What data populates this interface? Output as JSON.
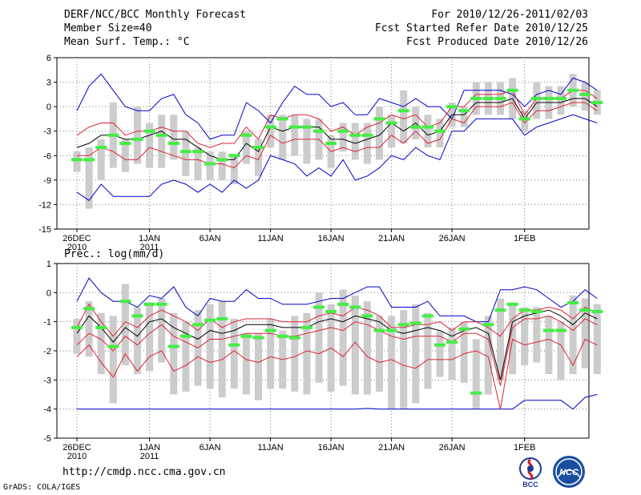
{
  "header": {
    "left": [
      "DERF/NCC/BCC Monthly Forecast",
      "Member Size=40",
      "Mean Surf. Temp.: °C"
    ],
    "right": [
      "For 2010/12/26-2011/02/03",
      "Fcst Started Refer Date 2010/12/25",
      "Fcst Produced Date 2010/12/26"
    ]
  },
  "footer": {
    "url": "http://cmdp.ncc.cma.gov.cn",
    "credit": "GrADS: COLA/IGES",
    "logo_bcc": "BCC",
    "logo_ncc": "NCC"
  },
  "colors": {
    "envelope": "#0000cc",
    "spread": "#dd2233",
    "mean": "#000000",
    "median": "#44ee44",
    "bar": "#cccccc"
  },
  "chart_data": [
    {
      "type": "box-plume",
      "title": "Mean Surf. Temp.: °C",
      "ylim": [
        -15,
        6
      ],
      "yticks": [
        6,
        3,
        0,
        -3,
        -6,
        -9,
        -12,
        -15
      ],
      "xticks": [
        {
          "day": 0,
          "label": "26DEC",
          "label2": "2010"
        },
        {
          "day": 6,
          "label": "1JAN",
          "label2": "2011"
        },
        {
          "day": 11,
          "label": "6JAN"
        },
        {
          "day": 16,
          "label": "11JAN"
        },
        {
          "day": 21,
          "label": "16JAN"
        },
        {
          "day": 26,
          "label": "21JAN"
        },
        {
          "day": 31,
          "label": "26JAN"
        },
        {
          "day": 37,
          "label": "1FEB"
        }
      ],
      "series": [
        {
          "name": "max",
          "values": [
            -0.5,
            2.5,
            4.0,
            2.0,
            0.0,
            -0.5,
            -0.5,
            1.0,
            1.5,
            -1.0,
            -2.0,
            -4.0,
            -3.5,
            -3.5,
            0.5,
            -0.5,
            -2.0,
            0.5,
            2.5,
            1.5,
            1.5,
            0.0,
            0.5,
            -1.0,
            -1.0,
            1.0,
            0.5,
            0.0,
            1.0,
            0.0,
            0.0,
            -1.5,
            2.0,
            2.0,
            2.0,
            2.0,
            1.5,
            0.0,
            1.5,
            2.0,
            1.5,
            3.5,
            3.0,
            2.0
          ]
        },
        {
          "name": "upper",
          "values": [
            -3.5,
            -2.5,
            -2.0,
            -2.0,
            -3.5,
            -3.0,
            -3.0,
            -2.5,
            -3.0,
            -3.0,
            -4.5,
            -5.0,
            -4.5,
            -4.5,
            -2.5,
            -4.0,
            -1.0,
            -1.5,
            -1.0,
            -1.0,
            -1.5,
            -3.0,
            -2.5,
            -3.5,
            -2.5,
            -2.0,
            -1.0,
            -1.5,
            -1.0,
            -2.5,
            -2.0,
            0.0,
            0.0,
            1.5,
            1.5,
            1.5,
            2.0,
            -1.0,
            1.0,
            1.0,
            1.0,
            2.0,
            2.0,
            1.0
          ]
        },
        {
          "name": "mean",
          "values": [
            -5.0,
            -4.5,
            -3.5,
            -3.5,
            -4.0,
            -4.0,
            -3.5,
            -3.0,
            -4.0,
            -4.0,
            -5.0,
            -6.0,
            -6.5,
            -6.5,
            -4.5,
            -5.5,
            -2.5,
            -3.0,
            -2.5,
            -2.5,
            -2.5,
            -4.0,
            -4.0,
            -4.5,
            -4.0,
            -3.5,
            -2.0,
            -3.0,
            -2.0,
            -3.5,
            -3.0,
            -1.0,
            -1.0,
            0.5,
            0.5,
            0.5,
            1.0,
            -1.5,
            0.5,
            0.5,
            0.5,
            1.0,
            1.0,
            0.0
          ]
        },
        {
          "name": "lower",
          "values": [
            -6.0,
            -6.0,
            -5.0,
            -5.5,
            -6.5,
            -6.5,
            -5.0,
            -5.5,
            -6.0,
            -6.5,
            -6.5,
            -7.0,
            -7.0,
            -7.5,
            -6.0,
            -6.5,
            -3.5,
            -4.5,
            -4.0,
            -4.0,
            -4.0,
            -5.5,
            -5.0,
            -5.5,
            -5.0,
            -5.0,
            -3.5,
            -4.5,
            -3.0,
            -4.5,
            -4.0,
            -1.5,
            -2.0,
            0.0,
            0.0,
            0.0,
            0.5,
            -2.0,
            -0.5,
            -0.5,
            0.0,
            0.5,
            0.5,
            -0.5
          ]
        },
        {
          "name": "min",
          "values": [
            -10.5,
            -11.5,
            -9.5,
            -11.0,
            -11.0,
            -11.0,
            -11.0,
            -9.5,
            -9.0,
            -9.5,
            -10.5,
            -9.5,
            -10.5,
            -9.0,
            -10.0,
            -9.0,
            -6.0,
            -6.5,
            -7.0,
            -8.5,
            -7.5,
            -8.5,
            -6.5,
            -9.0,
            -8.5,
            -7.5,
            -6.0,
            -6.5,
            -5.0,
            -6.0,
            -6.5,
            -3.0,
            -3.0,
            -1.5,
            -1.5,
            -1.5,
            -1.5,
            -3.5,
            -2.5,
            -2.0,
            -1.5,
            -1.0,
            -1.5,
            -2.0
          ]
        },
        {
          "name": "median",
          "values": [
            -6.5,
            -6.5,
            -5.0,
            -3.5,
            -4.5,
            -4.0,
            -3.0,
            -3.5,
            -4.5,
            -5.5,
            -5.5,
            -7.0,
            -6.5,
            -6.0,
            -3.5,
            -5.0,
            -2.5,
            -1.5,
            -2.5,
            -2.5,
            -3.0,
            -4.5,
            -3.0,
            -3.5,
            -3.5,
            -1.5,
            -2.0,
            -0.5,
            -2.5,
            -2.5,
            -3.0,
            0.0,
            -0.5,
            1.0,
            1.0,
            1.0,
            2.0,
            -1.5,
            1.0,
            1.0,
            1.0,
            2.0,
            1.5,
            0.5
          ]
        },
        {
          "name": "box_top",
          "values": [
            -5.5,
            -5.0,
            -4.0,
            0.5,
            -4.0,
            0.0,
            -2.0,
            -1.0,
            -1.0,
            -3.0,
            -5.0,
            -5.5,
            -5.5,
            -6.0,
            -3.0,
            -4.0,
            -1.0,
            -1.0,
            -1.0,
            -1.5,
            -1.5,
            -3.5,
            -2.0,
            -2.0,
            -2.0,
            0.0,
            -1.0,
            2.0,
            0.0,
            -1.0,
            -1.5,
            0.5,
            0.0,
            3.0,
            3.0,
            3.0,
            3.5,
            -0.5,
            3.0,
            2.5,
            2.5,
            4.0,
            3.0,
            2.0
          ]
        },
        {
          "name": "box_bottom",
          "values": [
            -8.0,
            -12.5,
            -9.0,
            -7.5,
            -8.0,
            -7.0,
            -7.5,
            -7.5,
            -6.5,
            -8.5,
            -9.0,
            -9.0,
            -9.0,
            -9.5,
            -7.0,
            -8.5,
            -5.0,
            -6.5,
            -6.0,
            -7.0,
            -6.5,
            -7.5,
            -5.5,
            -6.5,
            -7.0,
            -6.5,
            -5.0,
            -4.5,
            -4.0,
            -5.0,
            -5.0,
            -2.5,
            -2.5,
            -1.0,
            -1.0,
            -1.0,
            -1.5,
            -3.0,
            -1.5,
            -1.5,
            -1.0,
            0.0,
            -0.5,
            -1.0
          ]
        }
      ]
    },
    {
      "type": "box-plume",
      "title": "Prec.: log(mm/d)",
      "ylim": [
        -5,
        1
      ],
      "yticks": [
        1,
        0,
        -1,
        -2,
        -3,
        -4,
        -5
      ],
      "xticks": [
        {
          "day": 0,
          "label": "26DEC",
          "label2": "2010"
        },
        {
          "day": 6,
          "label": "1JAN",
          "label2": "2011"
        },
        {
          "day": 11,
          "label": "6JAN"
        },
        {
          "day": 16,
          "label": "11JAN"
        },
        {
          "day": 21,
          "label": "16JAN"
        },
        {
          "day": 26,
          "label": "21JAN"
        },
        {
          "day": 31,
          "label": "26JAN"
        },
        {
          "day": 37,
          "label": "1FEB"
        }
      ],
      "series": [
        {
          "name": "max",
          "values": [
            -0.3,
            0.5,
            0.0,
            -0.3,
            -0.3,
            -0.5,
            -0.1,
            -0.2,
            0.2,
            -0.5,
            -0.8,
            -0.2,
            -0.3,
            -0.3,
            0.1,
            -0.2,
            -0.2,
            -0.4,
            -0.4,
            -0.4,
            -0.3,
            -0.2,
            -0.2,
            0.0,
            0.2,
            0.2,
            -0.5,
            -0.5,
            -0.5,
            -0.3,
            -0.8,
            -0.8,
            -0.8,
            -1.0,
            -1.0,
            0.1,
            0.1,
            0.2,
            0.1,
            -0.2,
            -0.5,
            -0.3,
            0.1,
            -0.2
          ]
        },
        {
          "name": "upper",
          "values": [
            -1.2,
            -0.4,
            -1.0,
            -1.5,
            -1.0,
            -1.2,
            -0.8,
            -0.6,
            -0.8,
            -1.0,
            -1.3,
            -0.9,
            -1.2,
            -1.0,
            -0.9,
            -0.9,
            -0.9,
            -1.0,
            -1.0,
            -1.0,
            -0.8,
            -0.7,
            -0.8,
            -0.5,
            -0.6,
            -0.8,
            -1.2,
            -1.2,
            -1.1,
            -1.1,
            -1.0,
            -1.3,
            -1.0,
            -1.0,
            -1.2,
            -1.5,
            -0.9,
            -0.6,
            -0.6,
            -0.5,
            -0.6,
            -0.9,
            -0.5,
            -0.7
          ]
        },
        {
          "name": "mean",
          "values": [
            -1.4,
            -0.8,
            -1.2,
            -1.7,
            -1.2,
            -1.5,
            -1.0,
            -0.9,
            -1.2,
            -1.4,
            -1.6,
            -1.3,
            -1.4,
            -1.3,
            -1.1,
            -1.1,
            -1.1,
            -1.2,
            -1.2,
            -1.2,
            -1.0,
            -0.9,
            -1.0,
            -0.8,
            -0.9,
            -1.0,
            -1.3,
            -1.4,
            -1.3,
            -1.2,
            -1.3,
            -1.5,
            -1.3,
            -1.2,
            -1.4,
            -3.0,
            -1.0,
            -0.8,
            -0.7,
            -0.6,
            -0.8,
            -1.1,
            -0.7,
            -0.9
          ]
        },
        {
          "name": "lower",
          "values": [
            -1.8,
            -1.4,
            -1.6,
            -2.0,
            -1.5,
            -1.8,
            -1.4,
            -1.1,
            -1.5,
            -1.7,
            -1.9,
            -1.6,
            -1.6,
            -1.5,
            -1.4,
            -1.4,
            -1.4,
            -1.5,
            -1.5,
            -1.4,
            -1.3,
            -1.2,
            -1.3,
            -1.0,
            -1.1,
            -1.3,
            -1.5,
            -1.6,
            -1.5,
            -1.5,
            -1.5,
            -1.7,
            -1.4,
            -1.4,
            -1.6,
            -3.2,
            -1.2,
            -0.9,
            -0.9,
            -0.8,
            -1.0,
            -1.3,
            -0.9,
            -1.1
          ]
        },
        {
          "name": "red_low",
          "values": [
            -2.2,
            -1.8,
            -2.4,
            -2.9,
            -2.1,
            -2.7,
            -2.2,
            -2.0,
            -2.7,
            -2.5,
            -2.2,
            -2.4,
            -2.3,
            -2.0,
            -2.3,
            -2.4,
            -2.2,
            -2.3,
            -2.2,
            -2.0,
            -2.1,
            -1.9,
            -2.2,
            -1.7,
            -2.2,
            -2.4,
            -2.3,
            -2.5,
            -2.6,
            -2.3,
            -2.3,
            -2.3,
            -2.1,
            -2.0,
            -2.2,
            -4.0,
            -1.6,
            -1.8,
            -1.7,
            -1.6,
            -1.8,
            -2.5,
            -1.6,
            -1.8
          ]
        },
        {
          "name": "min",
          "values": [
            -4.0,
            -4.0,
            -4.0,
            -4.0,
            -4.0,
            -4.0,
            -4.0,
            -4.0,
            -4.0,
            -4.0,
            -4.0,
            -4.0,
            -4.0,
            -4.0,
            -4.0,
            -4.0,
            -4.0,
            -4.0,
            -4.0,
            -4.0,
            -4.0,
            -4.0,
            -4.0,
            -4.0,
            -3.98,
            -4.0,
            -4.0,
            -4.0,
            -4.0,
            -4.0,
            -4.0,
            -4.0,
            -4.0,
            -4.0,
            -4.0,
            -4.0,
            -4.0,
            -3.7,
            -3.7,
            -3.7,
            -3.7,
            -4.0,
            -3.6,
            -3.5
          ]
        },
        {
          "name": "median",
          "values": [
            -1.2,
            -0.55,
            -1.2,
            -1.85,
            -0.3,
            -0.8,
            -0.4,
            -0.4,
            -1.85,
            -1.5,
            -1.1,
            -0.95,
            -0.9,
            -1.8,
            -1.5,
            -1.55,
            -1.3,
            -1.5,
            -1.55,
            -1.2,
            -0.5,
            -0.65,
            -0.4,
            -0.5,
            -0.8,
            -1.3,
            -1.3,
            -1.1,
            -1.05,
            -0.8,
            -1.8,
            -1.7,
            -1.25,
            -3.45,
            -1.1,
            -0.6,
            -0.4,
            -0.6,
            -0.65,
            -1.3,
            -1.3,
            -0.35,
            -0.6,
            -0.65
          ]
        },
        {
          "name": "box_top",
          "values": [
            -0.9,
            -0.3,
            -0.7,
            -0.8,
            0.3,
            -0.5,
            -0.4,
            -0.2,
            -0.7,
            -1.0,
            -0.6,
            -0.4,
            -0.3,
            -0.9,
            -1.4,
            -1.4,
            -0.9,
            -1.3,
            -0.8,
            -0.7,
            0.0,
            -0.4,
            0.1,
            -0.1,
            -0.3,
            -0.8,
            -0.8,
            -0.6,
            -0.4,
            -0.7,
            -1.3,
            -1.2,
            -1.0,
            -1.6,
            -0.8,
            -0.2,
            -0.4,
            -0.5,
            -0.5,
            -0.8,
            -1.0,
            -0.1,
            -0.2,
            -0.4
          ]
        },
        {
          "name": "box_bottom",
          "values": [
            -2.1,
            -2.2,
            -2.8,
            -3.8,
            -2.5,
            -2.8,
            -2.7,
            -2.4,
            -3.5,
            -3.4,
            -3.2,
            -3.3,
            -3.6,
            -3.3,
            -3.5,
            -3.7,
            -3.3,
            -3.3,
            -3.4,
            -3.5,
            -3.1,
            -3.4,
            -3.2,
            -3.5,
            -3.5,
            -3.4,
            -4.0,
            -4.0,
            -3.8,
            -3.3,
            -2.9,
            -3.0,
            -3.1,
            -4.0,
            -3.5,
            -3.0,
            -2.8,
            -2.5,
            -2.4,
            -2.8,
            -3.0,
            -2.8,
            -2.6,
            -2.8
          ]
        }
      ]
    }
  ]
}
